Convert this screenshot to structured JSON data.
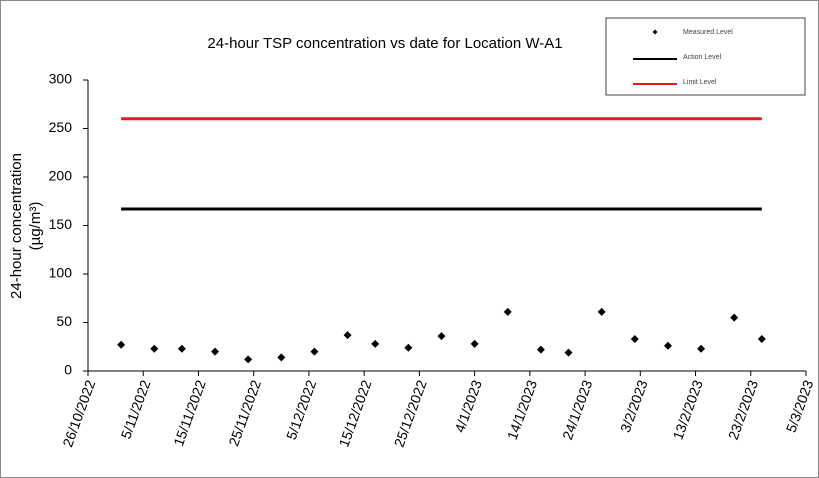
{
  "chart_data": {
    "type": "scatter",
    "title": "24-hour TSP concentration vs date for Location W-A1",
    "ylabel": [
      "24-hour concentration",
      "(µg/m³)"
    ],
    "ylim": [
      0,
      300
    ],
    "yticks": [
      0,
      50,
      100,
      150,
      200,
      250,
      300
    ],
    "xlim": [
      "2022-10-26",
      "2023-03-05"
    ],
    "xticks": [
      {
        "value": "2022-10-26",
        "label": "26/10/2022"
      },
      {
        "value": "2022-11-05",
        "label": "5/11/2022"
      },
      {
        "value": "2022-11-15",
        "label": "15/11/2022"
      },
      {
        "value": "2022-11-25",
        "label": "25/11/2022"
      },
      {
        "value": "2022-12-05",
        "label": "5/12/2022"
      },
      {
        "value": "2022-12-15",
        "label": "15/12/2022"
      },
      {
        "value": "2022-12-25",
        "label": "25/12/2022"
      },
      {
        "value": "2023-01-04",
        "label": "4/1/2023"
      },
      {
        "value": "2023-01-14",
        "label": "14/1/2023"
      },
      {
        "value": "2023-01-24",
        "label": "24/1/2023"
      },
      {
        "value": "2023-02-03",
        "label": "3/2/2023"
      },
      {
        "value": "2023-02-13",
        "label": "13/2/2023"
      },
      {
        "value": "2023-02-23",
        "label": "23/2/2023"
      },
      {
        "value": "2023-03-05",
        "label": "5/3/2023"
      }
    ],
    "legend": "upper right",
    "series": [
      {
        "name": "Measured Level",
        "color": "#000000",
        "marker": "diamond",
        "x": [
          "2022-11-01",
          "2022-11-07",
          "2022-11-12",
          "2022-11-18",
          "2022-11-24",
          "2022-11-30",
          "2022-12-06",
          "2022-12-12",
          "2022-12-17",
          "2022-12-23",
          "2022-12-29",
          "2023-01-04",
          "2023-01-10",
          "2023-01-16",
          "2023-01-21",
          "2023-01-27",
          "2023-02-02",
          "2023-02-08",
          "2023-02-14",
          "2023-02-20",
          "2023-02-25"
        ],
        "values": [
          27,
          23,
          23,
          20,
          12,
          14,
          20,
          37,
          28,
          24,
          36,
          28,
          61,
          22,
          19,
          61,
          33,
          26,
          23,
          55,
          33
        ]
      },
      {
        "name": "Action Level",
        "color": "#000000",
        "marker": "line",
        "x": [
          "2022-11-01",
          "2023-02-25"
        ],
        "values": [
          167,
          167
        ]
      },
      {
        "name": "Limit Level",
        "color": "#e31a1c",
        "marker": "line",
        "x": [
          "2022-11-01",
          "2023-02-25"
        ],
        "values": [
          260,
          260
        ]
      }
    ]
  }
}
